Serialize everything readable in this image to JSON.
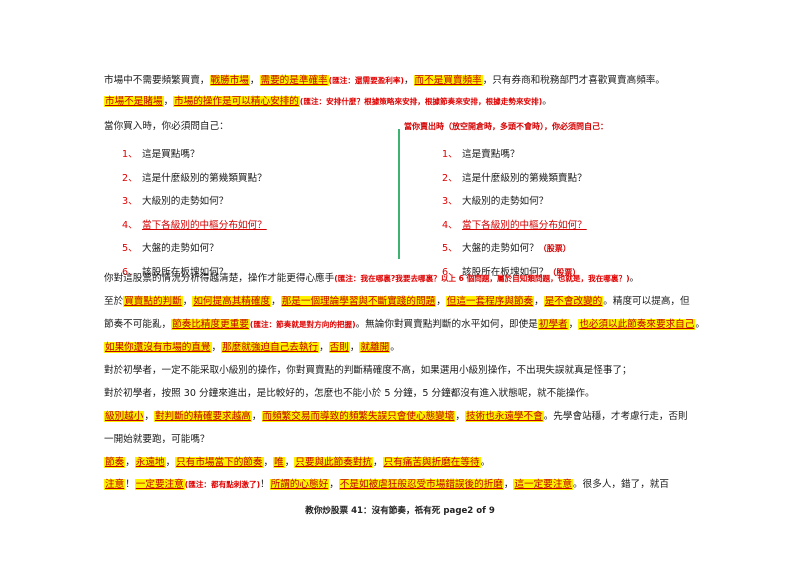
{
  "p1": {
    "a": "市場中不需要頻繁買賣，",
    "b": "戰勝市場",
    "c": "，",
    "d": "需要的是準確率",
    "e": "(匯注：還需要盈利率)",
    "f": "，",
    "g": "而不是買賣頻率",
    "h": "，只有券商和稅務部門才喜歡買賣高頻率。"
  },
  "p2": {
    "a": "市場不是賭場",
    "b": "，",
    "c": "市場的操作是可以精心安排的",
    "d": "(匯注：安排什麼？根據策略來安排，根據節奏來安排，根據走勢來安排)",
    "e": "。"
  },
  "left": {
    "head": "當你買入時，你必須問自己：",
    "items": [
      {
        "n": "1、",
        "t": "這是買點嗎？"
      },
      {
        "n": "2、",
        "t": "這是什麼級別的第幾類買點？"
      },
      {
        "n": "3、",
        "t": "大級別的走勢如何？"
      },
      {
        "n": "4、",
        "t": "當下各級別的中樞分布如何？"
      },
      {
        "n": "5、",
        "t": "大盤的走勢如何？"
      },
      {
        "n": "6、",
        "t": "該股所在板塊如何？"
      }
    ]
  },
  "right": {
    "head": "當你賣出時（放空開倉時，多頭不會時），你必須問自己：",
    "items": [
      {
        "n": "1、",
        "t": "這是賣點嗎？"
      },
      {
        "n": "2、",
        "t": "這是什麼級別的第幾類賣點？"
      },
      {
        "n": "3、",
        "t": "大級別的走勢如何？"
      },
      {
        "n": "4、",
        "t": "當下各級別的中樞分布如何？"
      },
      {
        "n": "5、",
        "t": "大盤的走勢如何？",
        "x": "（股票）"
      },
      {
        "n": "6、",
        "t": "該股所在板塊如何？",
        "x": "（股票）"
      }
    ]
  },
  "p3": {
    "a": "你對這股票的情況分析得越清楚，操作才能更得心應手",
    "b": "(匯注：我在哪裏?我要去哪裏？以上 6 個問題，屬於自知類問題，也就是，我在哪裏？)",
    "c": "。"
  },
  "p4": {
    "a": "至於",
    "b": "買賣點的判斷",
    "c": "，",
    "d": "如何提高其精確度",
    "e": "，",
    "f": "那是一個理論學習與不斷實踐的問題",
    "g": "，",
    "h": "但這一套程序與節奏",
    "i": "，",
    "j": "是不會改變的",
    "k": "。精度可以提高，但"
  },
  "p5": {
    "a": "節奏不可能亂，",
    "b": "節奏比精度更重要",
    "c": "(匯注：節奏就是對方向的把握)",
    "d": "。無論你對買賣點判斷的水平如何，即使是",
    "e": "初學者",
    "f": "，",
    "g": "也必須以此節奏來要求自己",
    "h": "。"
  },
  "p6": {
    "a": "如果你還沒有市場的直覺",
    "b": "，",
    "c": "那麼就強迫自己去執行",
    "d": "，",
    "e": "否則",
    "f": "，",
    "g": "就離開",
    "h": "。"
  },
  "p7": "對於初學者，一定不能采取小級別的操作，你對買賣點的判斷精確度不高，如果選用小級別操作，不出現失誤就真是怪事了；",
  "p8": "對於初學者，按照 30 分鐘來進出，是比較好的，怎麼也不能小於 5 分鐘，5 分鐘都沒有進入狀態呢，就不能操作。",
  "p9": {
    "a": "級別越小",
    "b": "，",
    "c": "對判斷的精確要求越高",
    "d": "，",
    "e": "而頻繁交易而導致的頻繁失誤只會使心態變壞",
    "f": "，",
    "g": "技術也永遠學不會",
    "h": "。先學會站穩，才考慮行走，否則"
  },
  "p10": "一開始就要跑，可能嗎？",
  "p11": {
    "a": "節奏",
    "b": "，",
    "c": "永遠地",
    "d": "，",
    "e": "只有市場當下的節奏",
    "f": "，",
    "g": "唯",
    "h": "，",
    "i": "只要與此節奏對抗",
    "j": "，",
    "k": "只有痛苦與折磨在等待",
    "l": "。"
  },
  "p12": {
    "a": "注意",
    "b": "！",
    "c": "一定要注意",
    "d": "(匯注：都有點刺激了)",
    "e": "！",
    "f": "所謂的心態好",
    "g": "，",
    "h": "不是如被虐狂般忍受市場錯誤後的折磨",
    "i": "，",
    "j": "這一定要注意",
    "k": "。很多人，錯了，就百"
  },
  "footer": "教你炒股票 41：沒有節奏，祇有死      page2 of 9"
}
